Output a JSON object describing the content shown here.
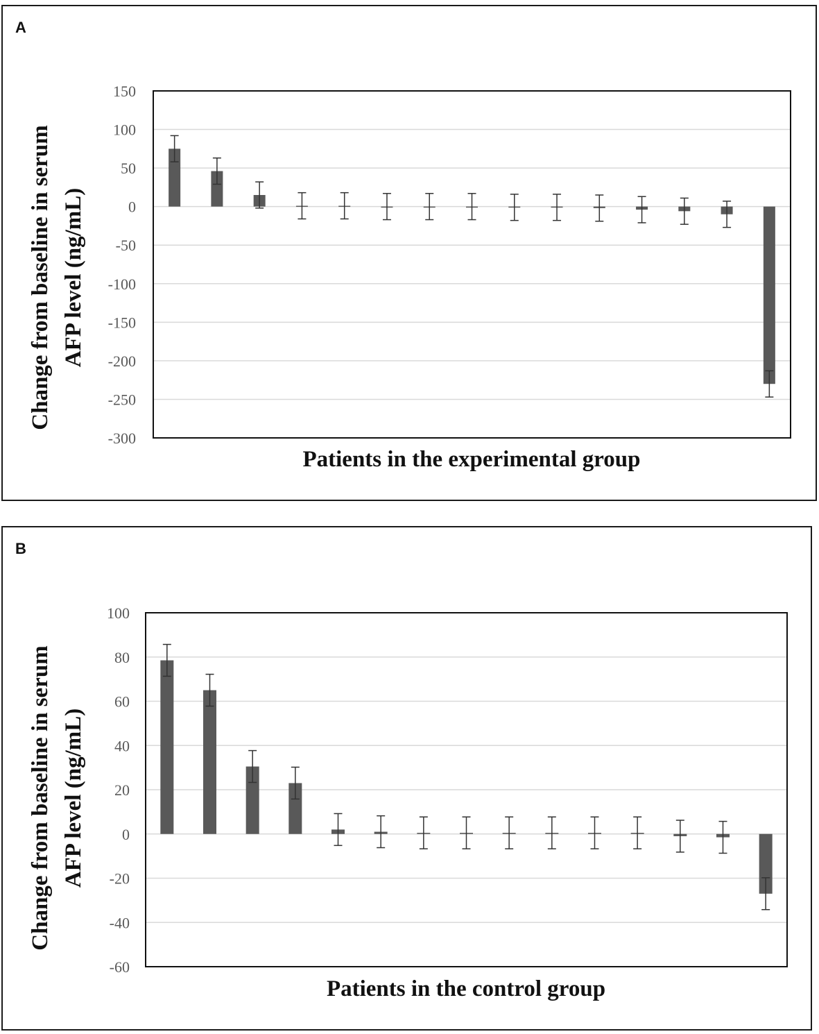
{
  "chart_data": [
    {
      "type": "bar",
      "panel_label": "A",
      "title": "",
      "xlabel": "Patients in the experimental group",
      "ylabel_line1": "Change from baseline in serum",
      "ylabel_line2": "AFP level (ng/mL)",
      "ylim": [
        -300,
        150
      ],
      "yticks": [
        150,
        100,
        50,
        0,
        -50,
        -100,
        -150,
        -200,
        -250,
        -300
      ],
      "grid": true,
      "bar_color": "#595959",
      "values": [
        75,
        46,
        15,
        1,
        1,
        0,
        0,
        0,
        -1,
        -1,
        -2,
        -4,
        -6,
        -10,
        -230
      ],
      "error": [
        17,
        17,
        17,
        17,
        17,
        17,
        17,
        17,
        17,
        17,
        17,
        17,
        17,
        17,
        17
      ]
    },
    {
      "type": "bar",
      "panel_label": "B",
      "title": "",
      "xlabel": "Patients in the control group",
      "ylabel_line1": "Change from baseline in serum",
      "ylabel_line2": "AFP level (ng/mL)",
      "ylim": [
        -60,
        100
      ],
      "yticks": [
        100,
        80,
        60,
        40,
        20,
        0,
        -20,
        -40,
        -60
      ],
      "grid": true,
      "bar_color": "#595959",
      "values": [
        78.5,
        65,
        30.5,
        23,
        2,
        1,
        0.5,
        0.5,
        0.5,
        0.5,
        0.5,
        0.5,
        -1,
        -1.5,
        -27
      ],
      "error": [
        7.2,
        7.2,
        7.2,
        7.2,
        7.2,
        7.2,
        7.2,
        7.2,
        7.2,
        7.2,
        7.2,
        7.2,
        7.2,
        7.2,
        7.2
      ]
    }
  ]
}
